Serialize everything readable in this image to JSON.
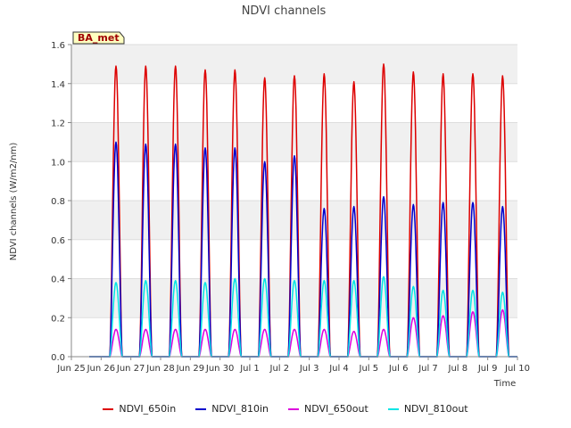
{
  "chart_data": {
    "type": "line",
    "title": "NDVI channels",
    "xlabel": "Time",
    "ylabel": "NDVI channels (W/m2/nm)",
    "ylim": [
      0.0,
      1.6
    ],
    "yticks": [
      "0.0",
      "0.2",
      "0.4",
      "0.6",
      "0.8",
      "1.0",
      "1.2",
      "1.4",
      "1.6"
    ],
    "x_day_range": [
      0,
      15
    ],
    "xticks": [
      "Jun 25",
      "Jun 26",
      "Jun 27",
      "Jun 28",
      "Jun 29",
      "Jun 30",
      "Jul 1",
      "Jul 2",
      "Jul 3",
      "Jul 4",
      "Jul 5",
      "Jul 6",
      "Jul 7",
      "Jul 8",
      "Jul 9",
      "Jul 10"
    ],
    "bands": "alternating grey background bands every 0.2",
    "badge": "BA_met",
    "daily_peak_day_offset": 0.5,
    "series": [
      {
        "name": "NDVI_650in",
        "color": "#dd0000",
        "values": [
          1.49,
          1.49,
          1.49,
          1.47,
          1.47,
          1.43,
          1.44,
          1.45,
          1.41,
          1.5,
          1.46,
          1.45,
          1.45,
          1.44
        ]
      },
      {
        "name": "NDVI_810in",
        "color": "#0000cc",
        "values": [
          1.1,
          1.09,
          1.09,
          1.07,
          1.07,
          1.0,
          1.03,
          0.76,
          0.77,
          0.82,
          0.78,
          0.79,
          0.79,
          0.77
        ]
      },
      {
        "name": "NDVI_650out",
        "color": "#dd00dd",
        "values": [
          0.14,
          0.14,
          0.14,
          0.14,
          0.14,
          0.14,
          0.14,
          0.14,
          0.13,
          0.14,
          0.2,
          0.21,
          0.23,
          0.24
        ]
      },
      {
        "name": "NDVI_810out",
        "color": "#00e5e5",
        "values": [
          0.38,
          0.39,
          0.39,
          0.38,
          0.4,
          0.4,
          0.39,
          0.39,
          0.39,
          0.41,
          0.36,
          0.34,
          0.34,
          0.33
        ]
      }
    ]
  }
}
